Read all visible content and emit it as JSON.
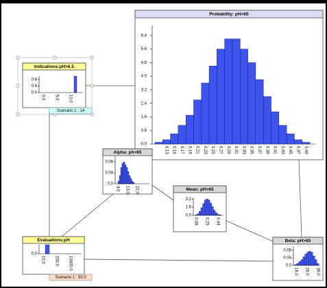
{
  "probability": {
    "title": "Probability: pH>65",
    "ylim": [
      0,
      7.0
    ],
    "yticks": [
      {
        "value": 0,
        "label": "0.0"
      },
      0.8,
      1.6,
      2.4,
      3.2,
      {
        "value": 4,
        "label": "4.0"
      },
      4.8,
      5.6,
      6.4
    ],
    "categories": [
      null,
      "0.13",
      "0.15",
      "0.17",
      "0.19",
      "0.21",
      "0.23",
      "0.25",
      "0.27",
      "0.29",
      "0.31",
      "0.33",
      "0.35",
      "0.37",
      "0.39",
      "0.41",
      "0.43",
      "0.45",
      "0.47",
      "0.49"
    ],
    "values": [
      0.1,
      0.25,
      0.6,
      1.1,
      1.7,
      2.6,
      3.6,
      4.6,
      5.6,
      6.2,
      6.2,
      5.6,
      4.8,
      3.8,
      2.8,
      1.9,
      1.1,
      0.6,
      0.25,
      0.1
    ]
  },
  "nodes": [
    {
      "title": "Indications:pH>6.5",
      "ylim": [
        0,
        1
      ],
      "yticks": [
        {
          "value": 0,
          "label": "0.0"
        },
        0.4,
        0.8
      ],
      "xlabels": [
        "0.0",
        "5.0",
        "10.0"
      ],
      "values": [
        1
      ],
      "scenario": "Scenario 1 : 14"
    },
    {
      "title": "Alpha: ph>65",
      "ylim": [
        0,
        0.1
      ],
      "yticks": [
        {
          "value": 0,
          "label": "0.0"
        },
        0.04,
        0.08
      ],
      "xlabels": [
        "4.0",
        "13.0",
        "22.0"
      ],
      "values": [
        0.01,
        0.03,
        0.06,
        0.075,
        0.08,
        0.07,
        0.06,
        0.045,
        0.03,
        0.02,
        0.01,
        0.005
      ]
    },
    {
      "title": "Mean: pH>65",
      "ylim": [
        0,
        3.5
      ],
      "yticks": [
        {
          "value": 0,
          "label": "0.0"
        },
        1.6,
        3.2
      ],
      "xlabels": [
        "0.08",
        "0.25",
        "0.44"
      ],
      "values": [
        0.1,
        0.3,
        0.8,
        1.5,
        2.3,
        3.0,
        3.2,
        3.0,
        2.4,
        1.7,
        1.0,
        0.5,
        0.2,
        0.1
      ]
    },
    {
      "title": "Evaluations:pH",
      "ylim": [
        0,
        1
      ],
      "yticks": [
        {
          "value": 0,
          "label": "0.0"
        }
      ],
      "xlabels": [
        "10.0",
        "250.0",
        "10000.0"
      ],
      "values": [
        1
      ],
      "scenario": "Scenario 1 : 50.0"
    },
    {
      "title": "Beta: pH>65",
      "ylim": [
        0,
        0.1
      ],
      "yticks": [
        {
          "value": 0,
          "label": "0.0"
        },
        0.04,
        0.08
      ],
      "xlabels": [
        "18.0",
        "28.0",
        "38.0"
      ],
      "values": [
        0.005,
        0.01,
        0.02,
        0.03,
        0.045,
        0.06,
        0.07,
        0.075,
        0.07,
        0.05,
        0.03,
        0.01
      ]
    }
  ]
}
